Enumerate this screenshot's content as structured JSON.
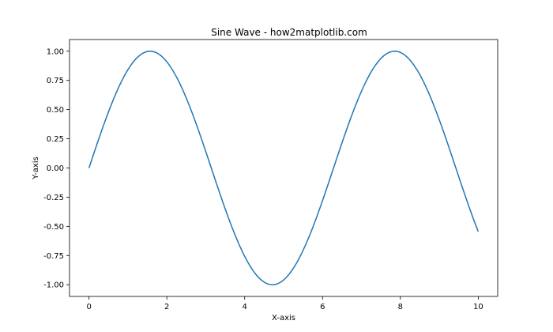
{
  "chart_data": {
    "type": "line",
    "title": "Sine Wave - how2matplotlib.com",
    "xlabel": "X-axis",
    "ylabel": "Y-axis",
    "xlim": [
      -0.5,
      10.5
    ],
    "ylim": [
      -1.1,
      1.1
    ],
    "xticks": [
      0,
      2,
      4,
      6,
      8,
      10
    ],
    "xtick_labels": [
      "0",
      "2",
      "4",
      "6",
      "8",
      "10"
    ],
    "yticks": [
      -1.0,
      -0.75,
      -0.5,
      -0.25,
      0.0,
      0.25,
      0.5,
      0.75,
      1.0
    ],
    "ytick_labels": [
      "-1.00",
      "-0.75",
      "-0.50",
      "-0.25",
      "0.00",
      "0.25",
      "0.50",
      "0.75",
      "1.00"
    ],
    "grid": false,
    "series": [
      {
        "color": "#1f77b4",
        "function": "sin(x)",
        "x_range": [
          0,
          10
        ],
        "points": [
          [
            0,
            0.0
          ],
          [
            0.5,
            0.479
          ],
          [
            1.0,
            0.841
          ],
          [
            1.5708,
            1.0
          ],
          [
            2.0,
            0.909
          ],
          [
            2.5,
            0.598
          ],
          [
            3.0,
            0.141
          ],
          [
            3.5,
            -0.351
          ],
          [
            4.0,
            -0.757
          ],
          [
            4.7124,
            -1.0
          ],
          [
            5.0,
            -0.959
          ],
          [
            5.5,
            -0.706
          ],
          [
            6.0,
            -0.279
          ],
          [
            6.5,
            0.215
          ],
          [
            7.0,
            0.657
          ],
          [
            7.854,
            1.0
          ],
          [
            8.5,
            0.798
          ],
          [
            9.0,
            0.412
          ],
          [
            9.5,
            -0.075
          ],
          [
            10.0,
            -0.544
          ]
        ]
      }
    ]
  }
}
